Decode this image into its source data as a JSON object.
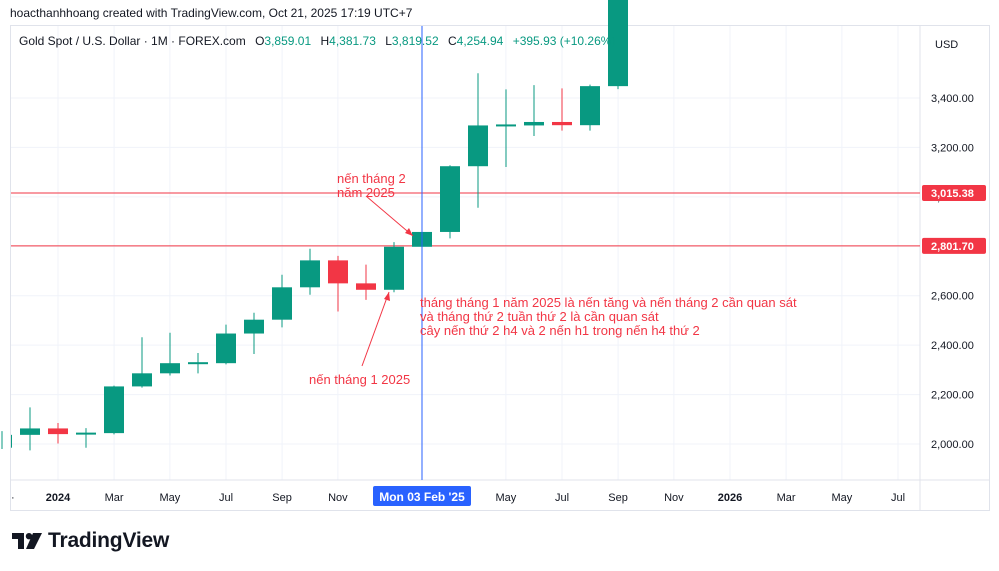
{
  "credit": "hoacthanhhoang created with TradingView.com, Oct 21, 2025 17:19 UTC+7",
  "legend": {
    "symbol": "Gold Spot / U.S. Dollar · 1M · FOREX.com",
    "open_label": "O",
    "open": "3,859.01",
    "high_label": "H",
    "high": "4,381.73",
    "low_label": "L",
    "low": "3,819.52",
    "close_label": "C",
    "close": "4,254.94",
    "change": "+395.93 (+10.26%)"
  },
  "currency": "USD",
  "brand": "TradingView",
  "colors": {
    "up": "#089981",
    "down": "#f23645",
    "crosshair": "#2962ff",
    "hline": "#f23645",
    "annotation": "#f23645"
  },
  "chart_data": {
    "type": "candlestick",
    "y_ticks": [
      2000,
      2200,
      2400,
      2600,
      2800,
      3000,
      3200,
      3400
    ],
    "y_tick_labels": [
      "2,000.00",
      "2,200.00",
      "2,400.00",
      "2,600.00",
      "2,800.00",
      "3,000.00",
      "3,200.00",
      "3,400.00"
    ],
    "x_tick_labels": [
      "2024",
      "Mar",
      "May",
      "Jul",
      "Sep",
      "Nov",
      "Mon 03 Feb '25",
      "May",
      "Jul",
      "Sep",
      "Nov",
      "2026",
      "Mar",
      "May",
      "Jul"
    ],
    "x_tick_positions": [
      2024.0,
      2024.167,
      2024.333,
      2024.5,
      2024.667,
      2024.833,
      2025.083,
      2025.333,
      2025.5,
      2025.667,
      2025.833,
      2026.0,
      2026.167,
      2026.333,
      2026.5
    ],
    "grid": true,
    "candles": [
      {
        "t": "2023-11",
        "o": 1985,
        "h": 2052,
        "l": 1980,
        "c": 2037
      },
      {
        "t": "2023-12",
        "o": 2037,
        "h": 2148,
        "l": 1974,
        "c": 2063
      },
      {
        "t": "2024-01",
        "o": 2063,
        "h": 2085,
        "l": 2002,
        "c": 2040
      },
      {
        "t": "2024-02",
        "o": 2040,
        "h": 2064,
        "l": 1985,
        "c": 2044
      },
      {
        "t": "2024-03",
        "o": 2044,
        "h": 2236,
        "l": 2039,
        "c": 2233
      },
      {
        "t": "2024-04",
        "o": 2233,
        "h": 2432,
        "l": 2228,
        "c": 2286
      },
      {
        "t": "2024-05",
        "o": 2286,
        "h": 2450,
        "l": 2277,
        "c": 2327
      },
      {
        "t": "2024-06",
        "o": 2327,
        "h": 2368,
        "l": 2286,
        "c": 2327
      },
      {
        "t": "2024-07",
        "o": 2327,
        "h": 2483,
        "l": 2322,
        "c": 2447
      },
      {
        "t": "2024-08",
        "o": 2447,
        "h": 2531,
        "l": 2364,
        "c": 2503
      },
      {
        "t": "2024-09",
        "o": 2503,
        "h": 2685,
        "l": 2472,
        "c": 2634
      },
      {
        "t": "2024-10",
        "o": 2634,
        "h": 2790,
        "l": 2604,
        "c": 2743
      },
      {
        "t": "2024-11",
        "o": 2743,
        "h": 2761,
        "l": 2536,
        "c": 2650
      },
      {
        "t": "2024-12",
        "o": 2650,
        "h": 2726,
        "l": 2583,
        "c": 2624
      },
      {
        "t": "2025-01",
        "o": 2624,
        "h": 2817,
        "l": 2614,
        "c": 2798
      },
      {
        "t": "2025-02",
        "o": 2798,
        "h": 2956,
        "l": 2772,
        "c": 2858
      },
      {
        "t": "2025-03",
        "o": 2858,
        "h": 3128,
        "l": 2832,
        "c": 3124
      },
      {
        "t": "2025-04",
        "o": 3124,
        "h": 3500,
        "l": 2956,
        "c": 3289
      },
      {
        "t": "2025-05",
        "o": 3289,
        "h": 3435,
        "l": 3121,
        "c": 3289
      },
      {
        "t": "2025-06",
        "o": 3289,
        "h": 3452,
        "l": 3246,
        "c": 3303
      },
      {
        "t": "2025-07",
        "o": 3303,
        "h": 3439,
        "l": 3268,
        "c": 3290
      },
      {
        "t": "2025-08",
        "o": 3290,
        "h": 3454,
        "l": 3268,
        "c": 3448
      },
      {
        "t": "2025-09",
        "o": 3448,
        "h": 3800,
        "l": 3436,
        "c": 3800
      }
    ],
    "horizontal_lines": [
      {
        "value": 3015.38,
        "label": "3,015.38"
      },
      {
        "value": 2801.7,
        "label": "2,801.70"
      }
    ],
    "crosshair_date": "2025-02",
    "annotations": [
      {
        "lines": [
          "nến tháng 2",
          "năm 2025"
        ],
        "points_to": "2025-02"
      },
      {
        "lines": [
          "nến tháng 1  2025"
        ],
        "points_to": "2025-01"
      },
      {
        "lines": [
          "tháng tháng 1 năm 2025 là nến tăng và nến tháng 2 cần quan sát",
          "và tháng thứ 2 tuần thứ 2 là cần quan sát",
          "cây nến thứ 2 h4 và 2 nến h1 trong nến h4 thứ 2"
        ]
      }
    ]
  }
}
